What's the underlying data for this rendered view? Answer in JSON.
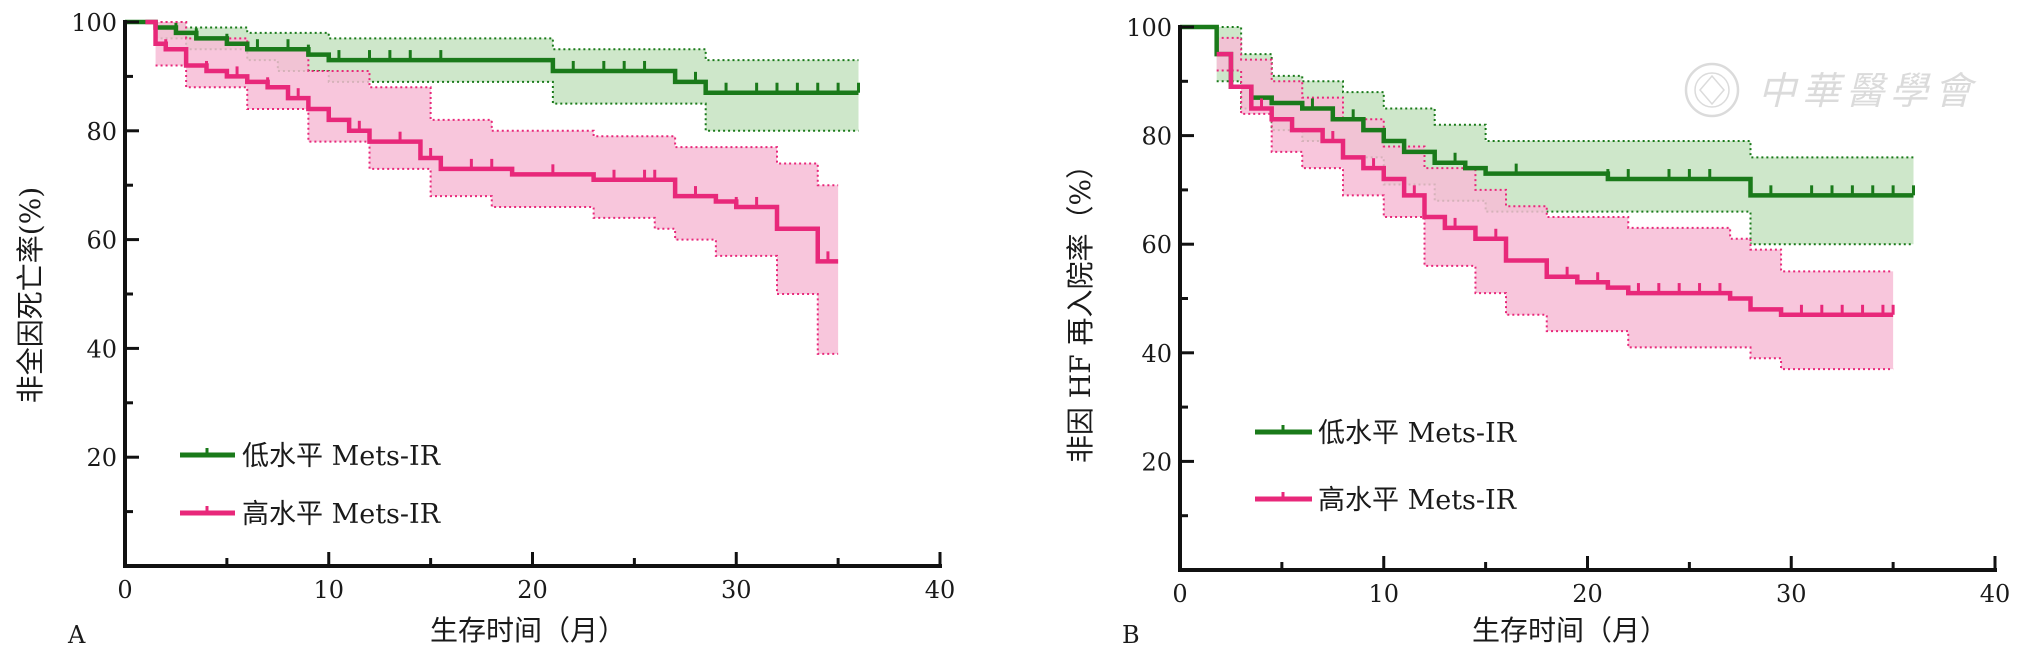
{
  "colors": {
    "low": "#1a7a1a",
    "low_fill": "#c5e3c1",
    "high": "#e8287a",
    "high_fill": "#f7bcd6",
    "axis": "#111111"
  },
  "watermark": {
    "text": "中華醫學會",
    "icon": "society-seal-icon"
  },
  "chart_data": [
    {
      "type": "line",
      "panel_label": "A",
      "xlabel": "生存时间（月）",
      "ylabel": "非全因死亡率(%)",
      "xlim": [
        0,
        40
      ],
      "ylim": [
        0,
        100
      ],
      "x_ticks": [
        "0",
        "10",
        "20",
        "30",
        "40"
      ],
      "y_ticks": [
        "20",
        "40",
        "60",
        "80",
        "100"
      ],
      "legend_position": "bottom-left",
      "series": [
        {
          "key": "low",
          "name": "低水平 Mets-IR",
          "steps": [
            [
              0,
              100
            ],
            [
              1.5,
              100
            ],
            [
              1.5,
              99
            ],
            [
              2.5,
              99
            ],
            [
              2.5,
              98
            ],
            [
              3.5,
              98
            ],
            [
              3.5,
              97
            ],
            [
              5,
              97
            ],
            [
              5,
              96
            ],
            [
              6,
              96
            ],
            [
              6,
              95
            ],
            [
              9,
              95
            ],
            [
              9,
              94
            ],
            [
              10,
              94
            ],
            [
              10,
              93
            ],
            [
              21,
              93
            ],
            [
              21,
              91
            ],
            [
              27,
              91
            ],
            [
              27,
              89
            ],
            [
              28.5,
              89
            ],
            [
              28.5,
              87
            ],
            [
              36,
              87
            ]
          ],
          "ci_upper": [
            [
              1.5,
              100
            ],
            [
              3,
              99
            ],
            [
              6,
              98
            ],
            [
              7.5,
              98
            ],
            [
              10,
              97
            ],
            [
              21,
              97
            ],
            [
              21,
              95
            ],
            [
              28.5,
              95
            ],
            [
              28.5,
              93
            ],
            [
              36,
              93
            ]
          ],
          "ci_lower": [
            [
              1.5,
              97
            ],
            [
              3,
              95
            ],
            [
              6,
              93
            ],
            [
              7.5,
              91
            ],
            [
              10,
              89
            ],
            [
              21,
              89
            ],
            [
              21,
              85
            ],
            [
              27,
              85
            ],
            [
              28.5,
              80
            ],
            [
              36,
              80
            ]
          ],
          "censor_x": [
            2.5,
            3.5,
            5,
            6.5,
            8,
            9,
            10.5,
            12,
            13,
            14,
            15.5,
            22,
            23.5,
            24.5,
            25.5,
            27,
            28,
            29.5,
            31,
            32,
            33,
            34,
            35,
            36
          ]
        },
        {
          "key": "high",
          "name": "高水平 Mets-IR",
          "steps": [
            [
              1,
              100
            ],
            [
              1.5,
              100
            ],
            [
              1.5,
              96
            ],
            [
              2,
              96
            ],
            [
              2,
              95
            ],
            [
              3,
              95
            ],
            [
              3,
              92
            ],
            [
              4,
              92
            ],
            [
              4,
              91
            ],
            [
              5,
              91
            ],
            [
              5,
              90
            ],
            [
              6,
              90
            ],
            [
              6,
              89
            ],
            [
              7,
              89
            ],
            [
              7,
              88
            ],
            [
              8,
              88
            ],
            [
              8,
              86
            ],
            [
              9,
              86
            ],
            [
              9,
              84
            ],
            [
              10,
              84
            ],
            [
              10,
              82
            ],
            [
              11,
              82
            ],
            [
              11,
              80
            ],
            [
              12,
              80
            ],
            [
              12,
              78
            ],
            [
              14.5,
              78
            ],
            [
              14.5,
              75
            ],
            [
              15.5,
              75
            ],
            [
              15.5,
              73
            ],
            [
              19,
              73
            ],
            [
              19,
              72
            ],
            [
              23,
              72
            ],
            [
              23,
              71
            ],
            [
              27,
              71
            ],
            [
              27,
              68
            ],
            [
              29,
              68
            ],
            [
              29,
              67
            ],
            [
              30,
              67
            ],
            [
              30,
              66
            ],
            [
              32,
              66
            ],
            [
              32,
              62
            ],
            [
              34,
              62
            ],
            [
              34,
              56
            ],
            [
              35,
              56
            ]
          ],
          "ci_upper": [
            [
              1.5,
              100
            ],
            [
              3,
              97
            ],
            [
              6,
              95
            ],
            [
              9,
              91
            ],
            [
              12,
              88
            ],
            [
              15,
              82
            ],
            [
              18,
              80
            ],
            [
              23,
              80
            ],
            [
              23,
              79
            ],
            [
              27,
              79
            ],
            [
              27,
              77
            ],
            [
              32,
              77
            ],
            [
              32,
              74
            ],
            [
              34,
              74
            ],
            [
              34,
              70
            ],
            [
              35,
              70
            ]
          ],
          "ci_lower": [
            [
              1.5,
              92
            ],
            [
              3,
              88
            ],
            [
              6,
              84
            ],
            [
              9,
              78
            ],
            [
              12,
              73
            ],
            [
              15,
              68
            ],
            [
              18,
              66
            ],
            [
              23,
              64
            ],
            [
              26,
              62
            ],
            [
              27,
              60
            ],
            [
              29,
              57
            ],
            [
              32,
              57
            ],
            [
              32,
              50
            ],
            [
              34,
              50
            ],
            [
              34,
              39
            ],
            [
              35,
              39
            ]
          ],
          "censor_x": [
            2,
            4,
            5.5,
            7,
            8.5,
            10,
            11.5,
            13.5,
            15,
            17,
            18,
            21,
            24,
            25.5,
            26,
            28,
            30,
            31,
            34.5
          ]
        }
      ]
    },
    {
      "type": "line",
      "panel_label": "B",
      "xlabel": "生存时间（月）",
      "ylabel": "非因 HF 再入院率（%）",
      "xlim": [
        0,
        40
      ],
      "ylim": [
        0,
        100
      ],
      "x_ticks": [
        "0",
        "10",
        "20",
        "30",
        "40"
      ],
      "y_ticks": [
        "20",
        "40",
        "60",
        "80",
        "100"
      ],
      "legend_position": "bottom-left",
      "series": [
        {
          "key": "low",
          "name": "低水平 Mets-IR",
          "steps": [
            [
              0,
              100
            ],
            [
              1.8,
              100
            ],
            [
              1.8,
              95
            ],
            [
              2.5,
              95
            ],
            [
              2.5,
              89
            ],
            [
              3.5,
              89
            ],
            [
              3.5,
              87
            ],
            [
              4.5,
              87
            ],
            [
              4.5,
              86
            ],
            [
              6,
              86
            ],
            [
              6,
              85
            ],
            [
              7.5,
              85
            ],
            [
              7.5,
              83
            ],
            [
              9,
              83
            ],
            [
              9,
              81
            ],
            [
              10,
              81
            ],
            [
              10,
              79
            ],
            [
              11,
              79
            ],
            [
              11,
              77
            ],
            [
              12.5,
              77
            ],
            [
              12.5,
              75
            ],
            [
              14,
              75
            ],
            [
              14,
              74
            ],
            [
              15,
              74
            ],
            [
              15,
              73
            ],
            [
              21,
              73
            ],
            [
              21,
              72
            ],
            [
              28,
              72
            ],
            [
              28,
              69
            ],
            [
              36,
              69
            ]
          ],
          "ci_upper": [
            [
              1.8,
              100
            ],
            [
              3,
              95
            ],
            [
              4.5,
              91
            ],
            [
              6,
              90
            ],
            [
              8,
              88
            ],
            [
              10,
              85
            ],
            [
              12.5,
              82
            ],
            [
              15,
              79
            ],
            [
              21,
              79
            ],
            [
              28,
              79
            ],
            [
              28,
              76
            ],
            [
              36,
              76
            ]
          ],
          "ci_lower": [
            [
              1.8,
              90
            ],
            [
              3,
              85
            ],
            [
              4.5,
              81
            ],
            [
              6,
              79
            ],
            [
              8,
              76
            ],
            [
              10,
              71
            ],
            [
              12.5,
              68
            ],
            [
              15,
              66
            ],
            [
              21,
              66
            ],
            [
              28,
              66
            ],
            [
              28,
              60
            ],
            [
              36,
              60
            ]
          ],
          "censor_x": [
            3.5,
            6.5,
            8.5,
            10,
            13.5,
            16.5,
            21,
            22,
            24,
            25,
            26,
            29,
            31,
            32,
            33,
            34,
            35,
            36
          ]
        },
        {
          "key": "high",
          "name": "高水平 Mets-IR",
          "steps": [
            [
              1.8,
              95
            ],
            [
              2.5,
              95
            ],
            [
              2.5,
              89
            ],
            [
              3.5,
              89
            ],
            [
              3.5,
              85
            ],
            [
              4.5,
              85
            ],
            [
              4.5,
              83
            ],
            [
              5.5,
              83
            ],
            [
              5.5,
              81
            ],
            [
              7,
              81
            ],
            [
              7,
              79
            ],
            [
              8,
              79
            ],
            [
              8,
              76
            ],
            [
              9,
              76
            ],
            [
              9,
              74
            ],
            [
              10,
              74
            ],
            [
              10,
              72
            ],
            [
              11,
              72
            ],
            [
              11,
              69
            ],
            [
              12,
              69
            ],
            [
              12,
              65
            ],
            [
              13,
              65
            ],
            [
              13,
              63
            ],
            [
              14.5,
              63
            ],
            [
              14.5,
              61
            ],
            [
              16,
              61
            ],
            [
              16,
              57
            ],
            [
              18,
              57
            ],
            [
              18,
              54
            ],
            [
              19.5,
              54
            ],
            [
              19.5,
              53
            ],
            [
              21,
              53
            ],
            [
              21,
              52
            ],
            [
              22,
              52
            ],
            [
              22,
              51
            ],
            [
              27,
              51
            ],
            [
              27,
              50
            ],
            [
              28,
              50
            ],
            [
              28,
              48
            ],
            [
              29.5,
              48
            ],
            [
              29.5,
              47
            ],
            [
              35,
              47
            ]
          ],
          "ci_upper": [
            [
              1.8,
              98
            ],
            [
              3,
              94
            ],
            [
              4.5,
              90
            ],
            [
              6,
              87
            ],
            [
              8,
              83
            ],
            [
              10,
              78
            ],
            [
              12,
              74
            ],
            [
              14.5,
              70
            ],
            [
              16,
              67
            ],
            [
              18,
              65
            ],
            [
              22,
              63
            ],
            [
              27,
              61
            ],
            [
              28,
              59
            ],
            [
              29.5,
              55
            ],
            [
              35,
              55
            ]
          ],
          "ci_lower": [
            [
              1.8,
              92
            ],
            [
              3,
              84
            ],
            [
              4.5,
              77
            ],
            [
              6,
              74
            ],
            [
              8,
              69
            ],
            [
              10,
              65
            ],
            [
              12,
              56
            ],
            [
              14.5,
              51
            ],
            [
              16,
              47
            ],
            [
              18,
              44
            ],
            [
              22,
              41
            ],
            [
              27,
              41
            ],
            [
              28,
              39
            ],
            [
              29.5,
              37
            ],
            [
              35,
              37
            ]
          ],
          "censor_x": [
            2.5,
            4,
            5.5,
            7.5,
            9.5,
            11.5,
            13.5,
            15.5,
            19,
            20.5,
            22.5,
            23.5,
            24.5,
            25.5,
            26.5,
            30.5,
            31.5,
            32.5,
            33.5,
            34.5,
            35
          ]
        }
      ]
    }
  ]
}
